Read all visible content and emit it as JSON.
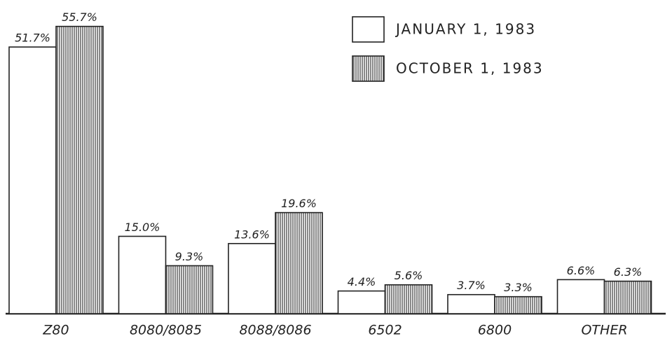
{
  "chart_data": {
    "type": "bar",
    "categories": [
      "Z80",
      "8080/8085",
      "8088/8086",
      "6502",
      "6800",
      "OTHER"
    ],
    "series": [
      {
        "name": "JANUARY 1, 1983",
        "color": "#ffffff",
        "values": [
          51.7,
          15.0,
          13.6,
          4.4,
          3.7,
          6.6
        ],
        "value_labels": [
          "51.7%",
          "15.0%",
          "13.6%",
          "4.4%",
          "3.7%",
          "6.6%"
        ]
      },
      {
        "name": "OCTOBER 1, 1983",
        "color": "#555555",
        "values": [
          55.7,
          9.3,
          19.6,
          5.6,
          3.3,
          6.3
        ],
        "value_labels": [
          "55.7%",
          "9.3%",
          "19.6%",
          "5.6%",
          "3.3%",
          "6.3%"
        ]
      }
    ],
    "ylim": [
      0,
      60
    ],
    "legend": "top-right"
  }
}
